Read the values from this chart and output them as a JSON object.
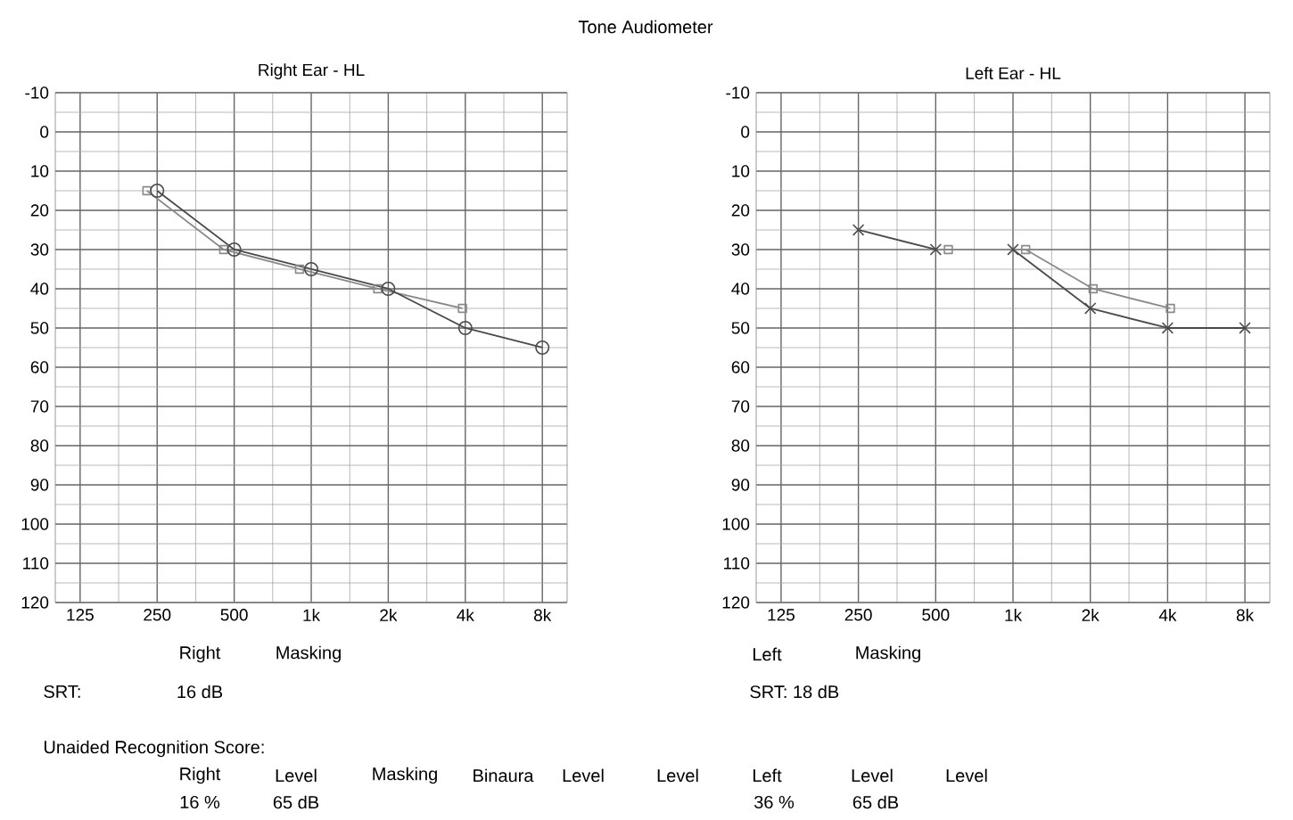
{
  "chart_data": [
    {
      "type": "line",
      "title": "Right Ear - HL",
      "log": "x",
      "grid": true,
      "xlim": [
        100,
        10000
      ],
      "ylim": [
        120,
        -10
      ],
      "xticks": [
        125,
        250,
        500,
        {
          "value": 1000,
          "label": "1k"
        },
        {
          "value": 2000,
          "label": "2k"
        },
        {
          "value": 4000,
          "label": "4k"
        },
        {
          "value": 8000,
          "label": "8k"
        }
      ],
      "yticks": [
        -10,
        0,
        10,
        20,
        30,
        40,
        50,
        60,
        70,
        80,
        90,
        100,
        110,
        120
      ],
      "series": [
        {
          "color": "#8a8a8a",
          "marker": "square",
          "x": [
            228,
            455,
            900,
            1820,
            3900
          ],
          "values": [
            15,
            30,
            35,
            40,
            45
          ]
        },
        {
          "color": "#4a4a4a",
          "marker": "circle",
          "x": [
            250,
            500,
            1000,
            2000,
            4000,
            8000
          ],
          "values": [
            15,
            30,
            35,
            40,
            50,
            55
          ]
        }
      ],
      "annotations": [
        "Tone Audiometer",
        "Right",
        "Masking",
        "SRT:",
        "16 dB",
        "Unaided Recognition Score:",
        "Right",
        "Level",
        "Masking",
        "Binaura",
        "Level",
        "Level",
        "16 %",
        "65 dB"
      ]
    },
    {
      "type": "line",
      "title": "Left Ear - HL",
      "log": "x",
      "grid": true,
      "xlim": [
        100,
        10000
      ],
      "ylim": [
        120,
        -10
      ],
      "xticks": [
        125,
        250,
        500,
        {
          "value": 1000,
          "label": "1k"
        },
        {
          "value": 2000,
          "label": "2k"
        },
        {
          "value": 4000,
          "label": "4k"
        },
        {
          "value": 8000,
          "label": "8k"
        }
      ],
      "yticks": [
        -10,
        0,
        10,
        20,
        30,
        40,
        50,
        60,
        70,
        80,
        90,
        100,
        110,
        120
      ],
      "series": [
        {
          "color": "#8a8a8a",
          "marker": "square",
          "x": [
            560
          ],
          "values": [
            30
          ]
        },
        {
          "color": "#8a8a8a",
          "marker": "square",
          "x": [
            1120,
            2050,
            4100
          ],
          "values": [
            30,
            40,
            45
          ]
        },
        {
          "color": "#4a4a4a",
          "marker": "cross",
          "x": [
            250,
            500
          ],
          "values": [
            25,
            30
          ]
        },
        {
          "color": "#4a4a4a",
          "marker": "cross",
          "x": [
            1000,
            2000,
            4000,
            8000
          ],
          "values": [
            30,
            45,
            50,
            50
          ]
        }
      ],
      "annotations": [
        "Left",
        "Masking",
        "SRT: 18 dB",
        "Left",
        "Level",
        "Level",
        "36 %",
        "65 dB"
      ]
    }
  ]
}
